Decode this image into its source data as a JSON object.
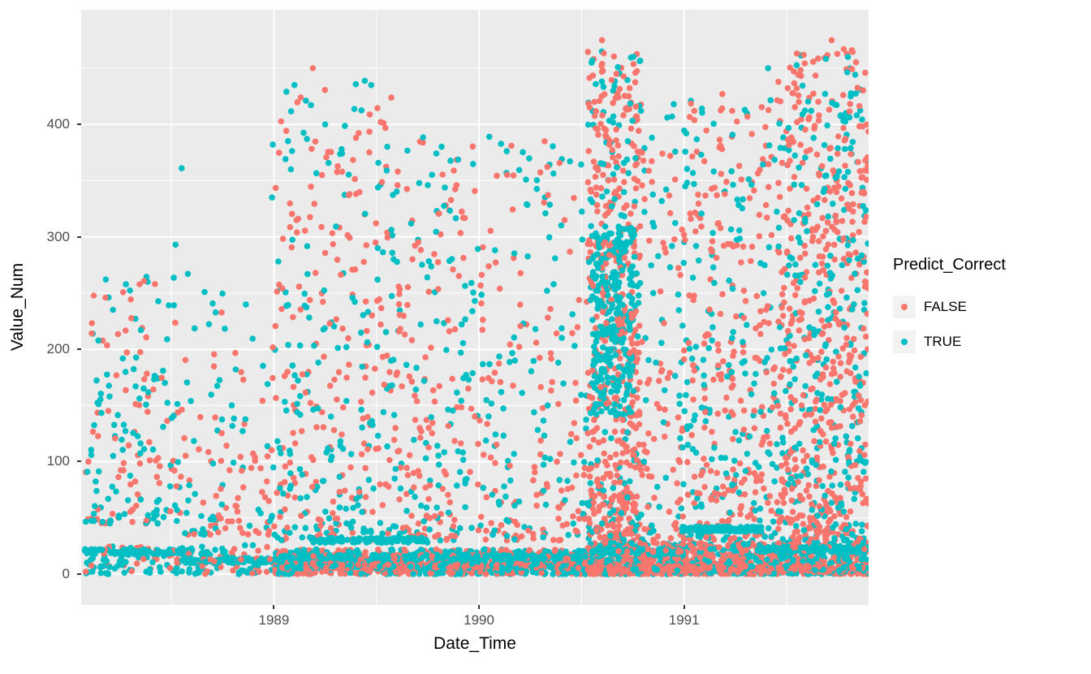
{
  "figure": {
    "background": "#FFFFFF",
    "panel_background": "#EBEBEB",
    "grid_color": "#FFFFFF",
    "tick_color": "#333333",
    "tick_label_color": "#4D4D4D",
    "axis_title_color": "#000000",
    "legend_key_background": "#F2F2F2"
  },
  "chart_data": {
    "type": "scatter",
    "title": "",
    "xlabel": "Date_Time",
    "ylabel": "Value_Num",
    "x_domain": [
      1988.06,
      1991.9
    ],
    "y_domain": [
      -27.5,
      502
    ],
    "grid": true,
    "x_ticks": [
      {
        "value": 1989,
        "label": "1989"
      },
      {
        "value": 1990,
        "label": "1990"
      },
      {
        "value": 1991,
        "label": "1991"
      }
    ],
    "y_ticks": [
      {
        "value": 0,
        "label": "0"
      },
      {
        "value": 100,
        "label": "100"
      },
      {
        "value": 200,
        "label": "200"
      },
      {
        "value": 300,
        "label": "300"
      },
      {
        "value": 400,
        "label": "400"
      }
    ],
    "x_minor_ticks": [
      1988.5,
      1989.5,
      1990.5,
      1991.5
    ],
    "y_minor_ticks": [
      50,
      150,
      250,
      350,
      450
    ],
    "legend": {
      "title": "Predict_Correct",
      "position": "right",
      "entries": [
        {
          "label": "FALSE",
          "color": "#F8766D"
        },
        {
          "label": "TRUE",
          "color": "#00BFC4"
        }
      ]
    },
    "series_colors": {
      "FALSE": "#F8766D",
      "TRUE": "#00BFC4"
    },
    "point_radius": 3.8,
    "clusters": [
      {
        "seed": 11,
        "x0": 1988.08,
        "x1": 1988.55,
        "y0": 45,
        "y1": 270,
        "skew": 1.6,
        "n": 185,
        "teal_frac": 0.47
      },
      {
        "seed": 12,
        "x0": 1988.55,
        "x1": 1988.99,
        "y0": 35,
        "y1": 265,
        "skew": 1.9,
        "n": 120,
        "teal_frac": 0.42
      },
      {
        "seed": 13,
        "x0": 1988.99,
        "x1": 1989.58,
        "y0": 30,
        "y1": 440,
        "skew": 1.55,
        "n": 380,
        "teal_frac": 0.45
      },
      {
        "seed": 14,
        "x0": 1989.58,
        "x1": 1989.97,
        "y0": 30,
        "y1": 390,
        "skew": 1.5,
        "n": 230,
        "teal_frac": 0.45
      },
      {
        "seed": 15,
        "x0": 1989.97,
        "x1": 1990.42,
        "y0": 30,
        "y1": 388,
        "skew": 1.6,
        "n": 200,
        "teal_frac": 0.45
      },
      {
        "seed": 16,
        "x0": 1990.42,
        "x1": 1990.53,
        "y0": 30,
        "y1": 380,
        "skew": 1.5,
        "n": 45,
        "teal_frac": 0.45
      },
      {
        "seed": 17,
        "x0": 1990.53,
        "x1": 1990.79,
        "y0": 25,
        "y1": 465,
        "skew": 1.35,
        "n": 640,
        "teal_frac": 0.3
      },
      {
        "seed": 18,
        "x0": 1990.55,
        "x1": 1990.76,
        "y0": 140,
        "y1": 310,
        "skew": 1.0,
        "n": 260,
        "teal_frac": 0.92
      },
      {
        "seed": 19,
        "x0": 1990.79,
        "x1": 1990.99,
        "y0": 30,
        "y1": 415,
        "skew": 1.55,
        "n": 115,
        "teal_frac": 0.45
      },
      {
        "seed": 20,
        "x0": 1990.99,
        "x1": 1991.46,
        "y0": 30,
        "y1": 428,
        "skew": 1.45,
        "n": 430,
        "teal_frac": 0.4
      },
      {
        "seed": 21,
        "x0": 1991.46,
        "x1": 1991.9,
        "y0": 30,
        "y1": 470,
        "skew": 1.35,
        "n": 800,
        "teal_frac": 0.38
      },
      {
        "seed": 22,
        "x0": 1988.08,
        "x1": 1989.0,
        "y0": 0,
        "y1": 26,
        "skew": 1.2,
        "n": 160,
        "teal_frac": 0.72
      },
      {
        "seed": 23,
        "x0": 1989.0,
        "x1": 1990.53,
        "y0": 0,
        "y1": 22,
        "skew": 1.3,
        "n": 900,
        "teal_frac": 0.55
      },
      {
        "seed": 24,
        "x0": 1990.53,
        "x1": 1991.9,
        "y0": 0,
        "y1": 28,
        "skew": 1.4,
        "n": 1150,
        "teal_frac": 0.45
      }
    ],
    "streaks": [
      {
        "seed": 31,
        "x0": 1988.07,
        "x1": 1988.6,
        "y": 20,
        "n": 95,
        "teal_frac": 0.95
      },
      {
        "seed": 32,
        "x0": 1988.55,
        "x1": 1989.05,
        "y": 12,
        "n": 85,
        "teal_frac": 0.9
      },
      {
        "seed": 33,
        "x0": 1989.18,
        "x1": 1989.75,
        "y": 30,
        "n": 115,
        "teal_frac": 0.97
      },
      {
        "seed": 34,
        "x0": 1989.03,
        "x1": 1990.52,
        "y": 15,
        "n": 260,
        "teal_frac": 0.85
      },
      {
        "seed": 35,
        "x0": 1989.03,
        "x1": 1990.52,
        "y": 7,
        "n": 220,
        "teal_frac": 0.5
      },
      {
        "seed": 36,
        "x0": 1990.53,
        "x1": 1991.0,
        "y": 20,
        "n": 100,
        "teal_frac": 0.8
      },
      {
        "seed": 37,
        "x0": 1990.99,
        "x1": 1991.38,
        "y": 40,
        "n": 115,
        "teal_frac": 0.96
      },
      {
        "seed": 38,
        "x0": 1991.36,
        "x1": 1991.9,
        "y": 22,
        "n": 130,
        "teal_frac": 0.9
      },
      {
        "seed": 39,
        "x0": 1990.53,
        "x1": 1991.9,
        "y": 5,
        "n": 240,
        "teal_frac": 0.35
      }
    ],
    "outliers": [
      {
        "x": 1990.6,
        "y": 475,
        "label": "FALSE"
      },
      {
        "x": 1991.72,
        "y": 475,
        "label": "FALSE"
      },
      {
        "x": 1989.19,
        "y": 450,
        "label": "FALSE"
      },
      {
        "x": 1991.41,
        "y": 450,
        "label": "TRUE"
      },
      {
        "x": 1989.1,
        "y": 435,
        "label": "TRUE"
      },
      {
        "x": 1990.67,
        "y": 445,
        "label": "FALSE"
      },
      {
        "x": 1989.25,
        "y": 400,
        "label": "TRUE"
      },
      {
        "x": 1988.55,
        "y": 361,
        "label": "TRUE"
      },
      {
        "x": 1988.52,
        "y": 293,
        "label": "TRUE"
      },
      {
        "x": 1988.58,
        "y": 267,
        "label": "TRUE"
      },
      {
        "x": 1988.18,
        "y": 262,
        "label": "TRUE"
      },
      {
        "x": 1988.42,
        "y": 258,
        "label": "FALSE"
      },
      {
        "x": 1990.05,
        "y": 389,
        "label": "TRUE"
      },
      {
        "x": 1990.32,
        "y": 385,
        "label": "FALSE"
      },
      {
        "x": 1990.95,
        "y": 418,
        "label": "TRUE"
      },
      {
        "x": 1991.05,
        "y": 412,
        "label": "FALSE"
      },
      {
        "x": 1991.56,
        "y": 420,
        "label": "FALSE"
      },
      {
        "x": 1989.4,
        "y": 388,
        "label": "FALSE"
      },
      {
        "x": 1989.33,
        "y": 378,
        "label": "TRUE"
      }
    ]
  }
}
